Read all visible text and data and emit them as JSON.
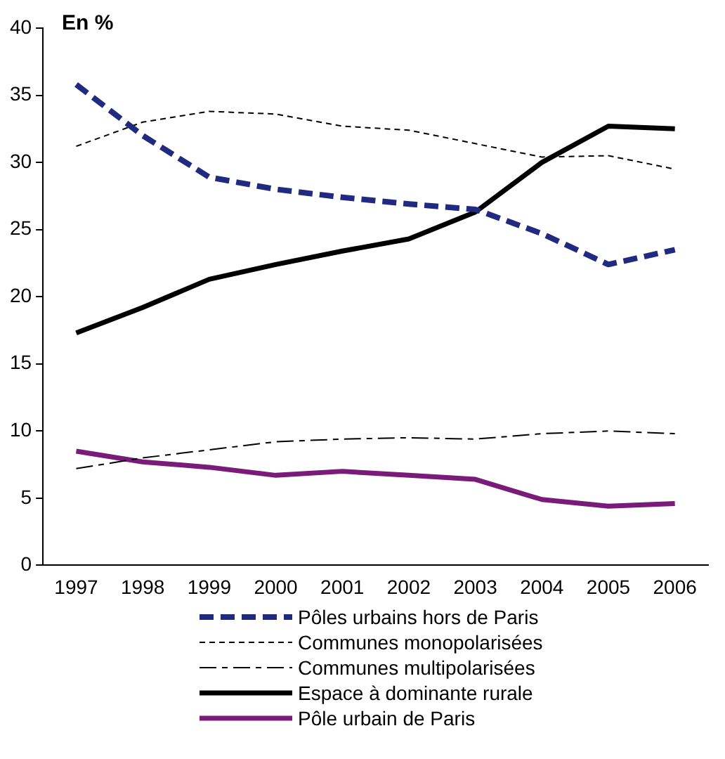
{
  "chart_data": {
    "type": "line",
    "ylabel": "En %",
    "categories": [
      "1997",
      "1998",
      "1999",
      "2000",
      "2001",
      "2002",
      "2003",
      "2004",
      "2005",
      "2006"
    ],
    "series": [
      {
        "name": "Pôles urbains hors de Paris",
        "color": "#1f2a80",
        "line_style": "dashed",
        "values": [
          35.8,
          32,
          28.9,
          28,
          27.4,
          26.9,
          26.5,
          24.7,
          22.4,
          23.5
        ]
      },
      {
        "name": "Communes monopolarisées",
        "color": "#000000",
        "line_style": "dashed",
        "values": [
          31.2,
          33,
          33.8,
          33.6,
          32.7,
          32.4,
          31.4,
          30.4,
          30.5,
          29.5
        ]
      },
      {
        "name": "Communes multipolarisées",
        "color": "#000000",
        "line_style": "dashed",
        "values": [
          7.2,
          8,
          8.6,
          9.2,
          9.4,
          9.5,
          9.4,
          9.8,
          10,
          9.8
        ]
      },
      {
        "name": "Espace à dominante rurale",
        "color": "#000000",
        "line_style": "solid",
        "values": [
          17.3,
          19.2,
          21.3,
          22.4,
          23.4,
          24.3,
          26.3,
          30,
          32.7,
          32.5
        ]
      },
      {
        "name": "Pôle urbain de Paris",
        "color": "#7a1b7a",
        "line_style": "solid",
        "values": [
          8.5,
          7.7,
          7.3,
          6.7,
          7.0,
          6.7,
          6.4,
          4.9,
          4.4,
          4.6
        ]
      }
    ],
    "ylim": [
      0,
      40
    ],
    "yticks": [
      0,
      5,
      10,
      15,
      20,
      25,
      30,
      35,
      40
    ],
    "grid": false,
    "legend": "bottom",
    "marker": "none"
  }
}
